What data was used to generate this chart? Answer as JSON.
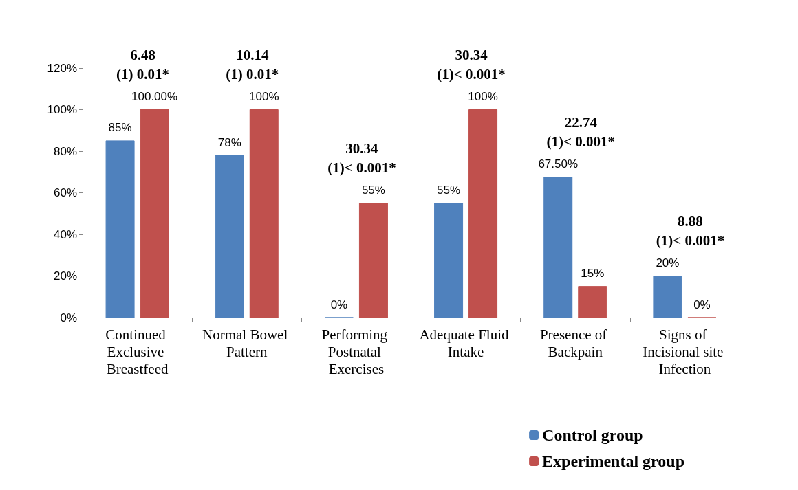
{
  "chart_data": {
    "type": "bar",
    "categories": [
      "Continued Exclusive Breastfeed",
      "Normal Bowel Pattern",
      "Performing Postnatal Exercises",
      "Adequate Fluid Intake",
      "Presence of Backpain",
      "Signs of Incisional site Infection"
    ],
    "series": [
      {
        "name": "Control group",
        "color": "#4f81bd",
        "values": [
          85,
          78,
          0,
          55,
          67.5,
          20
        ],
        "value_labels": [
          "85%",
          "78%",
          "0%",
          "55%",
          "67.50%",
          "20%"
        ]
      },
      {
        "name": "Experimental group",
        "color": "#c0504d",
        "values": [
          100,
          100,
          55,
          100,
          15,
          0
        ],
        "value_labels": [
          "100.00%",
          "100%",
          "55%",
          "100%",
          "15%",
          "0%"
        ]
      }
    ],
    "ylim": [
      0,
      120
    ],
    "yticks": [
      {
        "value": 0,
        "label": "0%"
      },
      {
        "value": 20,
        "label": "20%"
      },
      {
        "value": 40,
        "label": "40%"
      },
      {
        "value": 60,
        "label": "60%"
      },
      {
        "value": 80,
        "label": "80%"
      },
      {
        "value": 100,
        "label": "100%"
      },
      {
        "value": 120,
        "label": "120%"
      }
    ],
    "grid": false,
    "legend": "bottom right",
    "annotations": [
      "6.48\n(1) 0.01*",
      "10.14\n(1) 0.01*",
      "30.34\n(1)< 0.001*",
      "30.34\n(1)< 0.001*",
      "22.74\n(1)< 0.001*",
      "8.88\n(1)< 0.001*"
    ]
  }
}
